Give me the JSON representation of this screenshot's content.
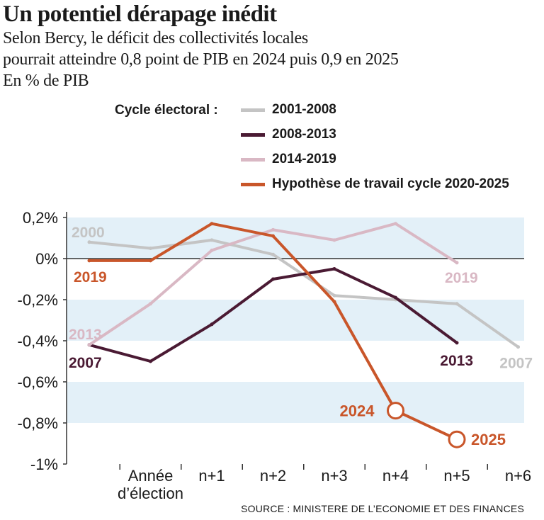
{
  "header": {
    "title": "Un potentiel dérapage inédit",
    "subtitle_line1": "Selon Bercy, le déficit des collectivités locales",
    "subtitle_line2": "pourrait atteindre 0,8 point de PIB en 2024 puis 0,9 en 2025",
    "unit": "En % de PIB"
  },
  "legend": {
    "title": "Cycle électoral :"
  },
  "source": "SOURCE : MINISTERE DE L’ECONOMIE ET DES FINANCES",
  "chart_data": {
    "type": "line",
    "categories": [
      "",
      "Année\nd’élection",
      "n+1",
      "n+2",
      "n+3",
      "n+4",
      "n+5",
      "n+6"
    ],
    "ylim": [
      -1,
      0.2
    ],
    "yticks": [
      0.2,
      0,
      -0.2,
      -0.4,
      -0.6,
      -0.8,
      -1
    ],
    "ytick_labels": [
      "0,2%",
      "0%",
      "-0,2%",
      "-0,4%",
      "-0,6%",
      "-0,8%",
      "-1%"
    ],
    "series": [
      {
        "name": "2001-2008",
        "color": "#c4c4c4",
        "values": [
          0.08,
          0.05,
          0.09,
          0.02,
          -0.18,
          -0.2,
          -0.22,
          -0.43
        ],
        "start_label": "2000",
        "end_label": "2007"
      },
      {
        "name": "2008-2013",
        "color": "#4a1a33",
        "values": [
          -0.42,
          -0.5,
          -0.32,
          -0.1,
          -0.05,
          -0.19,
          -0.41,
          null
        ],
        "start_label": "2007",
        "end_label": "2013"
      },
      {
        "name": "2014-2019",
        "color": "#d9b8c4",
        "values": [
          -0.42,
          -0.22,
          0.04,
          0.14,
          0.09,
          0.17,
          -0.02,
          null
        ],
        "start_label": "2013",
        "end_label": "2019"
      },
      {
        "name": "Hypothèse de travail cycle 2020-2025",
        "color": "#c9562a",
        "values": [
          -0.01,
          -0.01,
          0.17,
          0.11,
          -0.21,
          -0.74,
          -0.88,
          null
        ],
        "start_label": "2019",
        "end_label": "",
        "highlights": [
          {
            "index": 5,
            "label": "2024"
          },
          {
            "index": 6,
            "label": "2025"
          }
        ]
      }
    ]
  }
}
